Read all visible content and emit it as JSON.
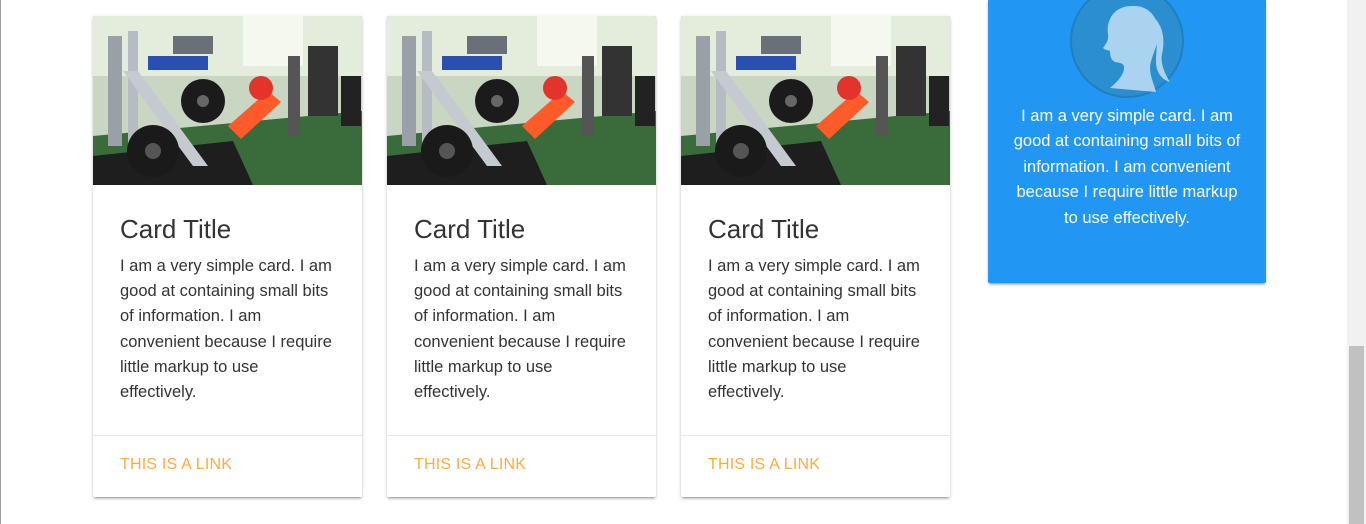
{
  "cards": [
    {
      "title": "Card Title",
      "text": "I am a very simple card. I am good at containing small bits of information. I am convenient because I require little markup to use effectively.",
      "link": "THIS IS A LINK"
    },
    {
      "title": "Card Title",
      "text": "I am a very simple card. I am good at containing small bits of information. I am convenient because I require little markup to use effectively.",
      "link": "THIS IS A LINK"
    },
    {
      "title": "Card Title",
      "text": "I am a very simple card. I am good at containing small bits of information. I am convenient because I require little markup to use effectively.",
      "link": "THIS IS A LINK"
    }
  ],
  "profile_card": {
    "text": "I am a very simple card. I am good at containing small bits of information. I am convenient because I require little markup to use effectively.",
    "avatar_icon": "woman-silhouette-icon"
  },
  "colors": {
    "link": "#ffab40",
    "profile_card_bg": "#2196f3",
    "title": "#333333"
  }
}
